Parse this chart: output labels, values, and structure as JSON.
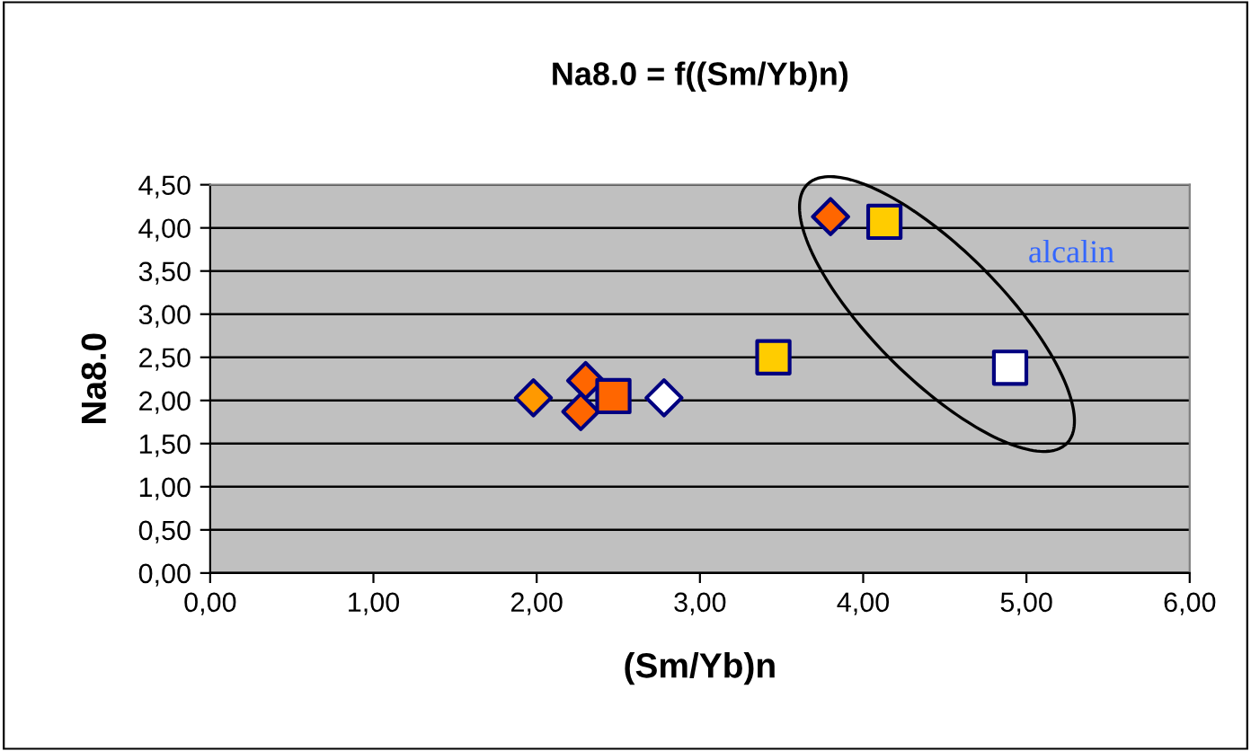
{
  "chart_data": {
    "type": "scatter",
    "title": "Na8.0 = f((Sm/Yb)n)",
    "xlabel": "(Sm/Yb)n",
    "ylabel": "Na8.0",
    "xlim": [
      0,
      6
    ],
    "xticks": [
      {
        "value": 0,
        "label": "0,00"
      },
      {
        "value": 1,
        "label": "1,00"
      },
      {
        "value": 2,
        "label": "2,00"
      },
      {
        "value": 3,
        "label": "3,00"
      },
      {
        "value": 4,
        "label": "4,00"
      },
      {
        "value": 5,
        "label": "5,00"
      },
      {
        "value": 6,
        "label": "6,00"
      }
    ],
    "ylim": [
      0,
      4.5
    ],
    "yticks": [
      {
        "value": 0,
        "label": "0,00"
      },
      {
        "value": 0.5,
        "label": "0,50"
      },
      {
        "value": 1,
        "label": "1,00"
      },
      {
        "value": 1.5,
        "label": "1,50"
      },
      {
        "value": 2,
        "label": "2,00"
      },
      {
        "value": 2.5,
        "label": "2,50"
      },
      {
        "value": 3,
        "label": "3,00"
      },
      {
        "value": 3.5,
        "label": "3,50"
      },
      {
        "value": 4,
        "label": "4,00"
      },
      {
        "value": 4.5,
        "label": "4,50"
      }
    ],
    "grid": "y",
    "annotations": [
      "alcalin"
    ],
    "series": [
      {
        "color": "#ff9900",
        "marker": "diamond",
        "x": [
          1.98
        ],
        "values": [
          2.03
        ]
      },
      {
        "color": "#ff6600",
        "marker": "diamond",
        "x": [
          2.3,
          2.27,
          3.8
        ],
        "values": [
          2.23,
          1.87,
          4.13
        ]
      },
      {
        "color": "#ff6600",
        "marker": "square",
        "x": [
          2.47
        ],
        "values": [
          2.05
        ]
      },
      {
        "color": "#ffcc00",
        "marker": "square",
        "x": [
          3.45,
          4.13
        ],
        "values": [
          2.5,
          4.07
        ]
      },
      {
        "color": "#ffffff",
        "marker": "square",
        "x": [
          4.9
        ],
        "values": [
          2.38
        ]
      },
      {
        "color": "#ffffff",
        "marker": "diamond",
        "x": [
          2.78
        ],
        "values": [
          2.03
        ]
      }
    ]
  }
}
